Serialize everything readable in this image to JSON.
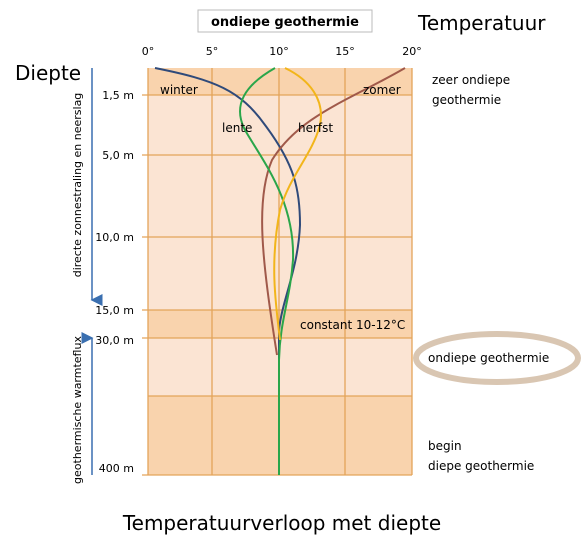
{
  "header": {
    "title": "ondiepe geothermie",
    "x_axis_title": "Temperatuur",
    "y_axis_title": "Diepte"
  },
  "temperature_ticks": [
    "0°",
    "5°",
    "10°",
    "15°",
    "20°"
  ],
  "depth_ticks": [
    "1,5 m",
    "5,0 m",
    "10,0 m",
    "15,0 m",
    "30,0 m",
    "400 m"
  ],
  "left_labels": [
    "directe zonnestraling en neerslag",
    "geothermische warmteflux"
  ],
  "curve_labels": {
    "winter": "winter",
    "summer": "zomer",
    "spring": "lente",
    "autumn": "herfst",
    "constant": "constant 10-12°C"
  },
  "zones": {
    "very_shallow": [
      "zeer ondiepe",
      "geothermie"
    ],
    "shallow": "ondiepe geothermie",
    "deep": [
      "begin",
      "diepe geothermie"
    ]
  },
  "footer": "Temperatuurverloop met diepte"
}
